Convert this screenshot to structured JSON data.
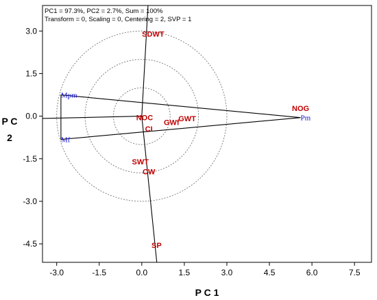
{
  "header": {
    "line1": "PC1 = 97.3%, PC2 = 2.7%, Sum = 100%",
    "line2": "Transform = 0, Scaling = 0, Centering = 2, SVP = 1"
  },
  "colors": {
    "trait": "#c00000",
    "genotype": "#1010d0",
    "circle": "#808080",
    "axis": "#000000"
  },
  "chart_data": {
    "type": "scatter",
    "xlabel": "P C 1",
    "ylabel": "P C 2",
    "xlim": [
      -3.5,
      8.1
    ],
    "ylim": [
      -5.15,
      3.9
    ],
    "xticks": [
      "-3.0",
      "-1.5",
      "0.0",
      "1.5",
      "3.0",
      "4.5",
      "6.0",
      "7.5"
    ],
    "yticks": [
      "3.0",
      "1.5",
      "0.0",
      "-1.5",
      "-3.0",
      "-4.5"
    ],
    "xtick_values": [
      -3.0,
      -1.5,
      0.0,
      1.5,
      3.0,
      4.5,
      6.0,
      7.5
    ],
    "ytick_values": [
      3.0,
      1.5,
      0.0,
      -1.5,
      -3.0,
      -4.5
    ],
    "concentric_circle_radii": [
      1.0,
      2.0,
      3.0
    ],
    "polygon_vertices": [
      "Mpm",
      "Pm",
      "Mf"
    ],
    "sector_rays": [
      {
        "x": 0.53,
        "y": -5.15
      },
      {
        "x": -3.5,
        "y": -0.08
      },
      {
        "x": 0.22,
        "y": 3.9
      }
    ],
    "traits": [
      {
        "label": "SDWT",
        "x": 0.4,
        "y": 2.9
      },
      {
        "label": "NOG",
        "x": 5.6,
        "y": 0.28
      },
      {
        "label": "NOC",
        "x": 0.1,
        "y": -0.05
      },
      {
        "label": "GWT",
        "x": 1.6,
        "y": -0.08
      },
      {
        "label": "GWf",
        "x": 1.05,
        "y": -0.22
      },
      {
        "label": "CI",
        "x": 0.25,
        "y": -0.45
      },
      {
        "label": "SWT",
        "x": -0.05,
        "y": -1.6
      },
      {
        "label": "CW",
        "x": 0.25,
        "y": -1.95
      },
      {
        "label": "SP",
        "x": 0.52,
        "y": -4.55
      }
    ],
    "genotypes": [
      {
        "label": "Mpm",
        "x": -2.85,
        "y": 0.75
      },
      {
        "label": "Pm",
        "x": 5.6,
        "y": -0.05
      },
      {
        "label": "Mf",
        "x": -2.85,
        "y": -0.82
      }
    ]
  }
}
